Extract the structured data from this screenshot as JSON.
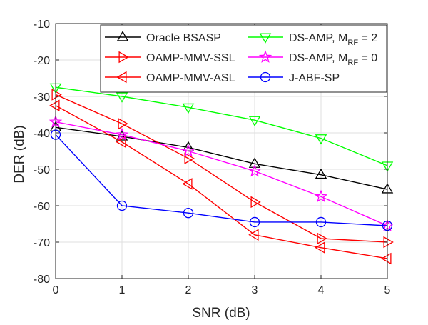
{
  "chart_data": {
    "type": "line",
    "title": "",
    "xlabel": "SNR (dB)",
    "ylabel": "DER (dB)",
    "xlim": [
      0,
      5
    ],
    "ylim": [
      -80,
      -10
    ],
    "xticks": [
      "0",
      "1",
      "2",
      "3",
      "4",
      "5"
    ],
    "yticks": [
      "-80",
      "-70",
      "-60",
      "-50",
      "-40",
      "-30",
      "-20",
      "-10"
    ],
    "grid": true,
    "legend_position": "top-right",
    "x": [
      0,
      1,
      2,
      3,
      4,
      5
    ],
    "series": [
      {
        "name": "Oracle BSASP",
        "name_parts": [
          "Oracle BSASP"
        ],
        "color": "#000000",
        "marker": "triangle-up",
        "values": [
          -38.5,
          -41,
          -44,
          -48.5,
          -51.5,
          -55.5
        ]
      },
      {
        "name": "OAMP-MMV-SSL",
        "name_parts": [
          "OAMP-MMV-SSL"
        ],
        "color": "#ff0000",
        "marker": "triangle-right",
        "values": [
          -29.5,
          -37.5,
          -47,
          -59,
          -69,
          -70
        ]
      },
      {
        "name": "OAMP-MMV-ASL",
        "name_parts": [
          "OAMP-MMV-ASL"
        ],
        "color": "#ff0000",
        "marker": "triangle-left",
        "values": [
          -32.5,
          -42.5,
          -54,
          -68,
          -71.5,
          -74.5
        ]
      },
      {
        "name": "DS-AMP, M_RF = 2",
        "name_parts": [
          "DS-AMP, M",
          "RF",
          " = 2"
        ],
        "color": "#00ff00",
        "marker": "triangle-down",
        "values": [
          -27.5,
          -30,
          -33,
          -36.5,
          -41.5,
          -49
        ]
      },
      {
        "name": "DS-AMP, M_RF = 0",
        "name_parts": [
          "DS-AMP, M",
          "RF",
          " = 0"
        ],
        "color": "#ff00ff",
        "marker": "pentagram",
        "values": [
          -37,
          -40.5,
          -45,
          -50.5,
          -57.5,
          -65.5
        ]
      },
      {
        "name": "J-ABF-SP",
        "name_parts": [
          "J-ABF-SP"
        ],
        "color": "#0000ff",
        "marker": "circle",
        "values": [
          -40.5,
          -60,
          -62,
          -64.5,
          -64.5,
          -65.5
        ]
      }
    ]
  }
}
